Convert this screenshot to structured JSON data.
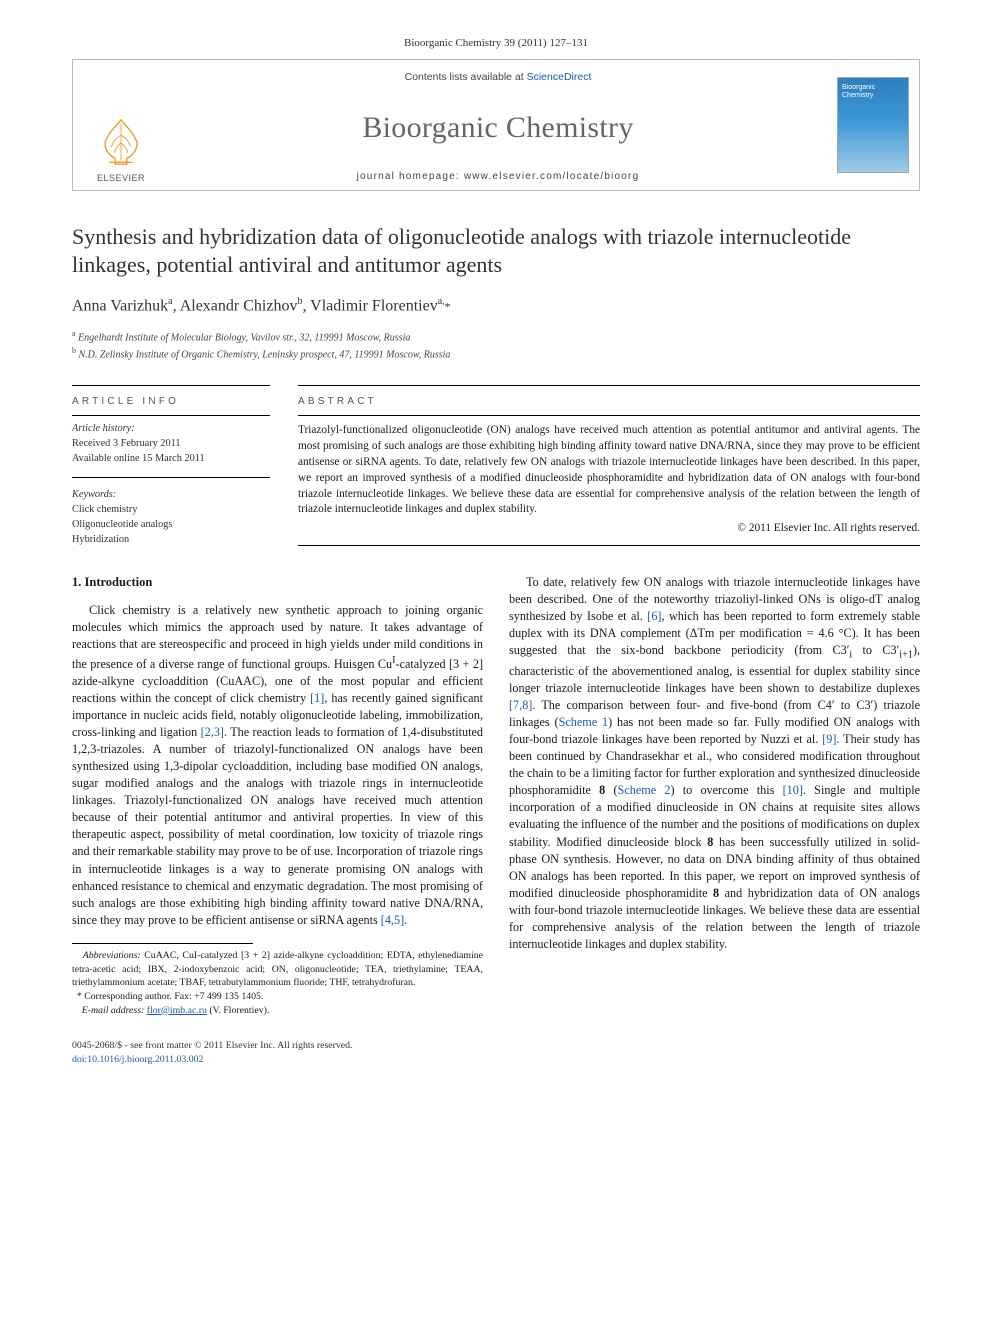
{
  "header": {
    "citation": "Bioorganic Chemistry 39 (2011) 127–131"
  },
  "masthead": {
    "contents_prefix": "Contents lists available at ",
    "contents_link": "ScienceDirect",
    "journal": "Bioorganic Chemistry",
    "homepage": "journal homepage: www.elsevier.com/locate/bioorg",
    "publisher": "ELSEVIER",
    "cover_title": "Bioorganic Chemistry",
    "logo_color": "#ff8a00",
    "cover_gradient_top": "#2b7fbf",
    "cover_gradient_bottom": "#a0cae8"
  },
  "article": {
    "title": "Synthesis and hybridization data of oligonucleotide analogs with triazole internucleotide linkages, potential antiviral and antitumor agents",
    "authors_html": "Anna Varizhuk<sup>a</sup>, Alexandr Chizhov<sup>b</sup>, Vladimir Florentiev<sup>a,</sup><span class=\"star\">*</span>",
    "affiliations": [
      {
        "tag": "a",
        "text": "Engelhardt Institute of Molecular Biology, Vavilov str., 32, 119991 Moscow, Russia"
      },
      {
        "tag": "b",
        "text": "N.D. Zelinsky Institute of Organic Chemistry, Leninsky prospect, 47, 119991 Moscow, Russia"
      }
    ]
  },
  "info": {
    "label": "article info",
    "history_label": "Article history:",
    "received": "Received 3 February 2011",
    "online": "Available online 15 March 2011",
    "keywords_label": "Keywords:",
    "keywords": [
      "Click chemistry",
      "Oligonucleotide analogs",
      "Hybridization"
    ]
  },
  "abstract": {
    "label": "abstract",
    "text": "Triazolyl-functionalized oligonucleotide (ON) analogs have received much attention as potential antitumor and antiviral agents. The most promising of such analogs are those exhibiting high binding affinity toward native DNA/RNA, since they may prove to be efficient antisense or siRNA agents. To date, relatively few ON analogs with triazole internucleotide linkages have been described. In this paper, we report an improved synthesis of a modified dinucleoside phosphoramidite and hybridization data of ON analogs with four-bond triazole internucleotide linkages. We believe these data are essential for comprehensive analysis of the relation between the length of triazole internucleotide linkages and duplex stability.",
    "copyright": "© 2011 Elsevier Inc. All rights reserved."
  },
  "body": {
    "heading": "1. Introduction",
    "para1_html": "Click chemistry is a relatively new synthetic approach to joining organic molecules which mimics the approach used by nature. It takes advantage of reactions that are stereospecific and proceed in high yields under mild conditions in the presence of a diverse range of functional groups. Huisgen Cu<sup>I</sup>-catalyzed [3 + 2] azide-alkyne cycloaddition (CuAAC), one of the most popular and efficient reactions within the concept of click chemistry <span class=\"ref-link\">[1]</span>, has recently gained significant importance in nucleic acids field, notably oligonucleotide labeling, immobilization, cross-linking and ligation <span class=\"ref-link\">[2,3]</span>. The reaction leads to formation of 1,4-disubstituted 1,2,3-triazoles. A number of triazolyl-functionalized ON analogs have been synthesized using 1,3-dipolar cycloaddition, including base modified ON analogs, sugar modified analogs and the analogs with triazole rings in internucleotide linkages. Triazolyl-functionalized ON analogs have received much attention because of their potential antitumor and antiviral properties. In view of this therapeutic aspect, possibility of metal coordination, low toxicity of triazole rings and their remarkable stability may prove to be of use. Incorporation of triazole rings in internucleotide linkages is a way to generate promising ON analogs with enhanced resistance to chemical and enzymatic degradation. The most promising of such analogs are those exhibiting high binding affinity toward native DNA/RNA, since they may prove to be efficient antisense or siRNA agents <span class=\"ref-link\">[4,5]</span>.",
    "para2_html": "To date, relatively few ON analogs with triazole internucleotide linkages have been described. One of the noteworthy triazoliyl-linked ONs is oligo-dT analog synthesized by Isobe et al. <span class=\"ref-link\">[6]</span>, which has been reported to form extremely stable duplex with its DNA complement (ΔTm per modification = 4.6 °C). It has been suggested that the six-bond backbone periodicity (from C3′<sub>i</sub> to C3′<sub>i+1</sub>), characteristic of the abovementioned analog, is essential for duplex stability since longer triazole internucleotide linkages have been shown to destabilize duplexes <span class=\"ref-link\">[7,8]</span>. The comparison between four- and five-bond (from C4′ to C3′) triazole linkages (<span class=\"ref-link\">Scheme 1</span>) has not been made so far. Fully modified ON analogs with four-bond triazole linkages have been reported by Nuzzi et al. <span class=\"ref-link\">[9]</span>. Their study has been continued by Chandrasekhar et al., who considered modification throughout the chain to be a limiting factor for further exploration and synthesized dinucleoside phosphoramidite <b>8</b> (<span class=\"ref-link\">Scheme 2</span>) to overcome this <span class=\"ref-link\">[10]</span>. Single and multiple incorporation of a modified dinucleoside in ON chains at requisite sites allows evaluating the influence of the number and the positions of modifications on duplex stability. Modified dinucleoside block <b>8</b> has been successfully utilized in solid-phase ON synthesis. However, no data on DNA binding affinity of thus obtained ON analogs has been reported. In this paper, we report on improved synthesis of modified dinucleoside phosphoramidite <b>8</b> and hybridization data of ON analogs with four-bond triazole internucleotide linkages. We believe these data are essential for comprehensive analysis of the relation between the length of triazole internucleotide linkages and duplex stability."
  },
  "footnotes": {
    "abbrev_label": "Abbreviations:",
    "abbrev_text": " CuAAC, CuI-catalyzed [3 + 2] azide-alkyne cycloaddition; EDTA, ethylenediamine tetra-acetic acid; IBX, 2-iodoxybenzoic acid; ON, oligonucleotide; TEA, triethylamine; TEAA, triethylammonium acetate; TBAF, tetrabutylammonium fluoride; THF, tetrahydrofuran.",
    "corresponding": "Corresponding author. Fax: +7 499 135 1405.",
    "email_label": "E-mail address:",
    "email_value": "flor@imb.ac.ru",
    "email_suffix": " (V. Florentiev)."
  },
  "footer": {
    "line1": "0045-2068/$ - see front matter © 2011 Elsevier Inc. All rights reserved.",
    "doi": "doi:10.1016/j.bioorg.2011.03.002"
  },
  "colors": {
    "link": "#1a57c4",
    "text": "#1a1a1a",
    "gray": "#656565"
  }
}
